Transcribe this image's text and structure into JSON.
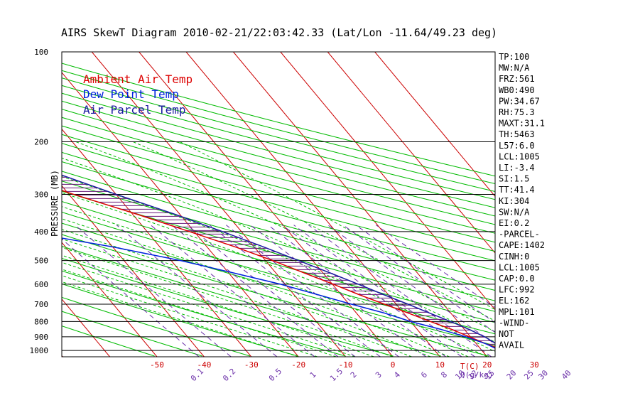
{
  "colors": {
    "frame": "#000000",
    "temp_axis": "#cc0000",
    "ambient": "#dd0000",
    "dewpoint": "#0022dd",
    "parcel": "#1a1aa0",
    "isotherm": "#cc0000",
    "dry_adiabat": "#00bb00",
    "moist_adiabat": "#00bb00",
    "mixing_ratio": "#6a2ea8",
    "cape_hatch": "#6a1a7a"
  },
  "chart_data": {
    "type": "skewt",
    "title": "AIRS SkewT Diagram 2010-02-21/22:03:42.33 (Lat/Lon -11.64/49.23 deg)",
    "ylabel": "PRESSURE (MB)",
    "xlabel_bottom_unit": "T(C)",
    "mixing_ratio_unit": "Q(g/kg)",
    "pressure_ticks": [
      100,
      200,
      300,
      400,
      500,
      600,
      700,
      800,
      900,
      1000
    ],
    "pressure_range": [
      100,
      1050
    ],
    "top_temp_ticks": [
      -120,
      -110,
      -100,
      -90,
      -80,
      -70,
      -60,
      -50,
      -40
    ],
    "bottom_temp_ticks": [
      -50,
      -40,
      -30,
      -20,
      -10,
      0,
      10,
      20,
      30
    ],
    "mixing_ratio_labels": [
      "0.1",
      "0.2",
      "0.5",
      "1",
      "1.5",
      "2",
      "3",
      "4",
      "6",
      "8",
      "10",
      "12",
      "15",
      "20",
      "25",
      "30",
      "40"
    ],
    "legend": [
      {
        "name": "Ambient Air Temp",
        "color": "#dd0000"
      },
      {
        "name": "Dew Point Temp",
        "color": "#0022dd"
      },
      {
        "name": "Air Parcel Temp",
        "color": "#1a1aa0"
      }
    ],
    "series": [
      {
        "name": "Ambient Air Temp",
        "points": [
          [
            100,
            -84
          ],
          [
            150,
            -73
          ],
          [
            180,
            -68.5
          ],
          [
            200,
            -63
          ],
          [
            250,
            -50
          ],
          [
            300,
            -39
          ],
          [
            350,
            -29
          ],
          [
            400,
            -21
          ],
          [
            450,
            -14
          ],
          [
            500,
            -8.5
          ],
          [
            550,
            -4
          ],
          [
            600,
            0.2
          ],
          [
            650,
            3.8
          ],
          [
            700,
            7.5
          ],
          [
            750,
            11
          ],
          [
            800,
            14.2
          ],
          [
            850,
            17.3
          ],
          [
            900,
            19.8
          ],
          [
            950,
            22
          ],
          [
            1005,
            25
          ]
        ]
      },
      {
        "name": "Dew Point Temp",
        "points": [
          [
            100,
            -87
          ],
          [
            150,
            -86
          ],
          [
            180,
            -86
          ],
          [
            200,
            -86
          ],
          [
            220,
            -86.5
          ],
          [
            250,
            -87
          ],
          [
            280,
            -87
          ],
          [
            300,
            -87
          ],
          [
            350,
            -71
          ],
          [
            400,
            -56
          ],
          [
            450,
            -40
          ],
          [
            500,
            -28
          ],
          [
            550,
            -19
          ],
          [
            600,
            -11
          ],
          [
            650,
            -5
          ],
          [
            700,
            0.5
          ],
          [
            750,
            6
          ],
          [
            800,
            10
          ],
          [
            850,
            15
          ],
          [
            900,
            19
          ],
          [
            950,
            22
          ],
          [
            1005,
            24
          ]
        ]
      },
      {
        "name": "Air Parcel Temp",
        "points": [
          [
            100,
            -95
          ],
          [
            150,
            -72
          ],
          [
            200,
            -53
          ],
          [
            250,
            -40
          ],
          [
            300,
            -30
          ],
          [
            350,
            -21
          ],
          [
            400,
            -14
          ],
          [
            450,
            -8
          ],
          [
            500,
            -3
          ],
          [
            550,
            1.5
          ],
          [
            600,
            5.5
          ],
          [
            650,
            9
          ],
          [
            700,
            12.5
          ],
          [
            750,
            15.5
          ],
          [
            800,
            18.5
          ],
          [
            850,
            21
          ],
          [
            900,
            23
          ],
          [
            950,
            24.2
          ],
          [
            1005,
            25
          ]
        ]
      }
    ],
    "indices": [
      "TP:100",
      "MW:N/A",
      "FRZ:561",
      "WB0:490",
      "PW:34.67",
      "RH:75.3",
      "MAXT:31.1",
      "TH:5463",
      "L57:6.0",
      "LCL:1005",
      "LI:-3.4",
      "SI:1.5",
      "TT:41.4",
      "KI:304",
      "SW:N/A",
      "EI:0.2",
      "-PARCEL-",
      "CAPE:1402",
      "CINH:0",
      "LCL:1005",
      "CAP:0.0",
      "LFC:992",
      "EL:162",
      "MPL:101",
      "-WIND-",
      "NOT",
      "AVAIL"
    ]
  }
}
